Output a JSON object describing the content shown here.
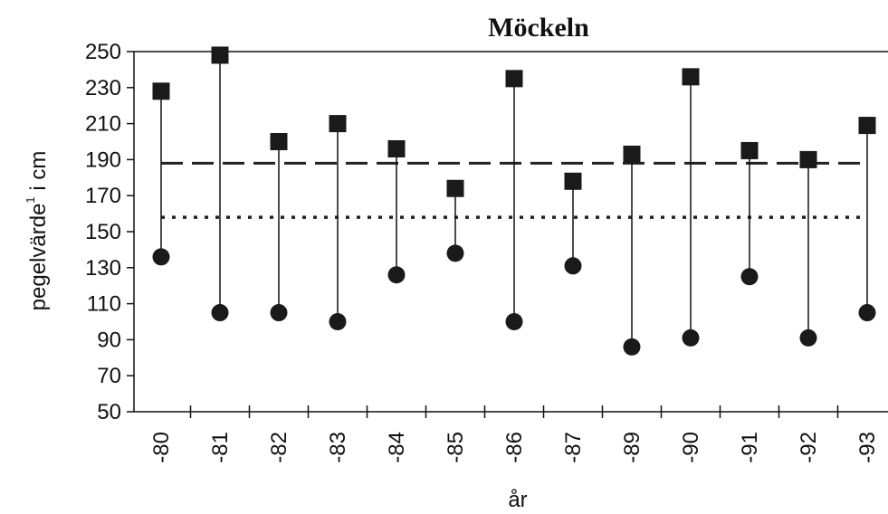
{
  "chart_data": {
    "type": "scatter",
    "title": "Möckeln",
    "xlabel": "år",
    "ylabel": {
      "main": "pegelvärde",
      "superscript": "1",
      "unit": " i cm"
    },
    "ylim": [
      50,
      250
    ],
    "yticks": [
      50,
      70,
      90,
      110,
      130,
      150,
      170,
      190,
      210,
      230,
      250
    ],
    "categories": [
      "-80",
      "-81",
      "-82",
      "-83",
      "-84",
      "-85",
      "-86",
      "-87",
      "-89",
      "-90",
      "-91",
      "-92",
      "-93"
    ],
    "series": [
      {
        "marker": "square",
        "values": [
          228,
          248,
          200,
          210,
          196,
          174,
          235,
          178,
          193,
          236,
          195,
          190,
          209
        ]
      },
      {
        "marker": "circle",
        "values": [
          136,
          105,
          105,
          100,
          126,
          138,
          100,
          131,
          86,
          91,
          125,
          91,
          105
        ]
      }
    ],
    "reference_lines": [
      {
        "style": "dashed",
        "value": 188
      },
      {
        "style": "dotted",
        "value": 158
      }
    ],
    "grid": false,
    "legend": "none"
  }
}
